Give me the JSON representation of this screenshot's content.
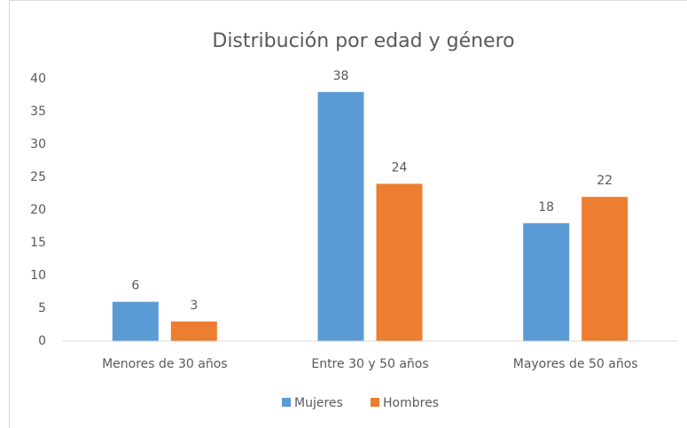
{
  "chart_data": {
    "type": "bar",
    "title": "Distribución por edad y género",
    "categories": [
      "Menores de 30 años",
      "Entre 30 y 50 años",
      "Mayores de 50 años"
    ],
    "series": [
      {
        "name": "Mujeres",
        "color": "#5b9bd5",
        "values": [
          6,
          38,
          18
        ]
      },
      {
        "name": "Hombres",
        "color": "#ed7d31",
        "values": [
          3,
          24,
          22
        ]
      }
    ],
    "ylim": [
      0,
      40
    ],
    "yticks": [
      0,
      5,
      10,
      15,
      20,
      25,
      30,
      35,
      40
    ],
    "grid": false,
    "legend": "bottom"
  }
}
